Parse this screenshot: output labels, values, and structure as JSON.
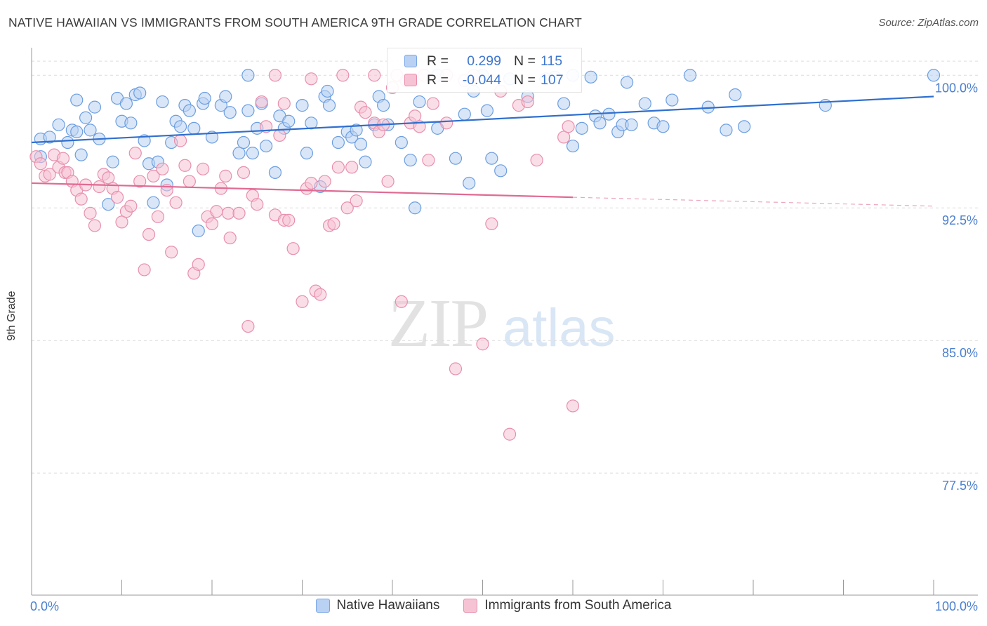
{
  "title": "NATIVE HAWAIIAN VS IMMIGRANTS FROM SOUTH AMERICA 9TH GRADE CORRELATION CHART",
  "source": "Source: ZipAtlas.com",
  "watermark": {
    "zip": "ZIP",
    "atlas": "atlas"
  },
  "stats": {
    "r_label": "R =",
    "n_label": "N =",
    "rows": [
      {
        "r": "0.299",
        "n": "115",
        "color": "#7aa7e6",
        "fill": "#b9d1f2"
      },
      {
        "r": "-0.044",
        "n": "107",
        "color": "#e88fac",
        "fill": "#f5c3d3"
      }
    ]
  },
  "chart_data": {
    "type": "scatter",
    "title": "NATIVE HAWAIIAN VS IMMIGRANTS FROM SOUTH AMERICA 9TH GRADE CORRELATION CHART",
    "xlabel": "",
    "ylabel": "9th Grade",
    "xlim": [
      0,
      100
    ],
    "ylim": [
      70.6,
      101.4
    ],
    "x_tick_labels": [
      "0.0%",
      "100.0%"
    ],
    "y_ticks": [
      100.0,
      92.5,
      85.0,
      77.5
    ],
    "y_tick_labels": [
      "100.0%",
      "92.5%",
      "85.0%",
      "77.5%"
    ],
    "grid": "horizontal dashed",
    "legend": "bottom",
    "series": [
      {
        "name": "Native Hawaiians",
        "color": "#6b9ee0",
        "fill": "#b9d1f2",
        "trend": {
          "x": [
            0,
            100
          ],
          "y": [
            96.2,
            98.8
          ]
        },
        "points": [
          [
            1,
            96.4
          ],
          [
            2,
            96.5
          ],
          [
            1,
            95.4
          ],
          [
            3,
            97.2
          ],
          [
            4,
            96.2
          ],
          [
            5,
            98.6
          ],
          [
            4.5,
            96.9
          ],
          [
            5,
            96.8
          ],
          [
            5.5,
            95.5
          ],
          [
            6,
            97.6
          ],
          [
            6.5,
            96.9
          ],
          [
            7,
            98.2
          ],
          [
            7.5,
            96.4
          ],
          [
            8.5,
            92.7
          ],
          [
            9,
            95.1
          ],
          [
            9.5,
            98.7
          ],
          [
            10,
            97.4
          ],
          [
            10.5,
            98.4
          ],
          [
            11,
            97.3
          ],
          [
            11.5,
            98.9
          ],
          [
            12,
            99
          ],
          [
            12.5,
            96.3
          ],
          [
            13,
            95
          ],
          [
            13.5,
            92.8
          ],
          [
            14,
            95.1
          ],
          [
            14.5,
            98.5
          ],
          [
            15,
            93.8
          ],
          [
            15.5,
            96.2
          ],
          [
            16,
            97.4
          ],
          [
            16.5,
            97.1
          ],
          [
            17,
            98.3
          ],
          [
            17.5,
            98
          ],
          [
            18,
            97
          ],
          [
            18.5,
            91.2
          ],
          [
            19,
            98.4
          ],
          [
            19.2,
            98.7
          ],
          [
            20,
            96.5
          ],
          [
            21,
            98.3
          ],
          [
            21.5,
            98.8
          ],
          [
            22,
            97.9
          ],
          [
            23,
            95.6
          ],
          [
            23.5,
            96.2
          ],
          [
            24,
            98
          ],
          [
            24.5,
            95.6
          ],
          [
            25,
            97
          ],
          [
            25.5,
            98.4
          ],
          [
            26,
            96
          ],
          [
            27,
            94.5
          ],
          [
            27.5,
            97.7
          ],
          [
            28,
            97
          ],
          [
            28.5,
            97.4
          ],
          [
            30,
            98.3
          ],
          [
            30.5,
            95.6
          ],
          [
            31,
            97.3
          ],
          [
            32,
            93.7
          ],
          [
            32.5,
            98.8
          ],
          [
            32.8,
            99.1
          ],
          [
            33,
            98.3
          ],
          [
            34,
            96.2
          ],
          [
            35,
            96.8
          ],
          [
            35.5,
            96.5
          ],
          [
            36,
            96.9
          ],
          [
            36.5,
            96.1
          ],
          [
            37,
            95.1
          ],
          [
            38,
            97.2
          ],
          [
            38.5,
            98.8
          ],
          [
            39,
            98.3
          ],
          [
            39.5,
            97.2
          ],
          [
            41,
            96.2
          ],
          [
            42,
            95.2
          ],
          [
            42.5,
            92.5
          ],
          [
            43,
            98.5
          ],
          [
            45,
            97
          ],
          [
            47,
            95.3
          ],
          [
            48,
            97.8
          ],
          [
            48.5,
            93.9
          ],
          [
            49,
            99.1
          ],
          [
            50.5,
            98
          ],
          [
            51,
            95.3
          ],
          [
            52,
            94.6
          ],
          [
            53,
            99.8
          ],
          [
            55,
            98.8
          ],
          [
            57,
            99.8
          ],
          [
            59,
            98.4
          ],
          [
            60,
            96
          ],
          [
            61,
            97
          ],
          [
            62,
            99.9
          ],
          [
            62.5,
            97.7
          ],
          [
            63,
            97.3
          ],
          [
            64,
            97.8
          ],
          [
            65,
            96.8
          ],
          [
            65.5,
            97.2
          ],
          [
            66,
            99.6
          ],
          [
            66.5,
            97.2
          ],
          [
            68,
            98.4
          ],
          [
            69,
            97.3
          ],
          [
            70,
            97.1
          ],
          [
            71,
            98.6
          ],
          [
            75,
            98.2
          ],
          [
            77,
            96.9
          ],
          [
            78,
            98.9
          ],
          [
            79,
            97.1
          ],
          [
            88,
            98.3
          ],
          [
            100,
            100
          ],
          [
            73,
            100
          ],
          [
            60,
            100
          ],
          [
            58,
            99.9
          ],
          [
            24,
            100
          ],
          [
            45,
            100
          ],
          [
            50,
            100
          ]
        ]
      },
      {
        "name": "Immigrants from South America",
        "color": "#e88fac",
        "fill": "#f5c3d3",
        "trend": {
          "x": [
            0,
            60
          ],
          "y": [
            93.9,
            93.1
          ]
        },
        "trend_dashed": {
          "x": [
            60,
            100
          ],
          "y": [
            93.1,
            92.6
          ]
        },
        "points": [
          [
            0.5,
            95.4
          ],
          [
            1,
            95
          ],
          [
            1.5,
            94.3
          ],
          [
            2,
            94.4
          ],
          [
            2.5,
            95.5
          ],
          [
            3,
            94.8
          ],
          [
            3.5,
            95.3
          ],
          [
            3.7,
            94.5
          ],
          [
            4,
            94.5
          ],
          [
            4.5,
            94
          ],
          [
            5,
            93.5
          ],
          [
            5.5,
            93
          ],
          [
            6,
            93.8
          ],
          [
            6.5,
            92.2
          ],
          [
            7,
            91.5
          ],
          [
            7.5,
            93.7
          ],
          [
            8,
            94.4
          ],
          [
            8.5,
            94.2
          ],
          [
            9,
            93.6
          ],
          [
            9.5,
            93.1
          ],
          [
            10,
            91.7
          ],
          [
            10.5,
            92.3
          ],
          [
            11,
            92.6
          ],
          [
            11.5,
            95.6
          ],
          [
            12,
            94
          ],
          [
            12.5,
            89
          ],
          [
            13,
            91
          ],
          [
            13.5,
            94.3
          ],
          [
            14,
            92
          ],
          [
            14.5,
            94.7
          ],
          [
            15,
            93.5
          ],
          [
            15.5,
            90
          ],
          [
            16,
            92.8
          ],
          [
            16.5,
            96.3
          ],
          [
            17,
            94.9
          ],
          [
            17.5,
            94
          ],
          [
            18,
            88.8
          ],
          [
            18.5,
            89.3
          ],
          [
            19,
            94.7
          ],
          [
            19.5,
            92
          ],
          [
            20,
            91.6
          ],
          [
            20.5,
            92.3
          ],
          [
            21,
            93.6
          ],
          [
            21.5,
            94.3
          ],
          [
            21.8,
            92.2
          ],
          [
            22,
            90.8
          ],
          [
            23,
            92.2
          ],
          [
            23.5,
            94.5
          ],
          [
            24,
            85.8
          ],
          [
            24.5,
            93.2
          ],
          [
            25,
            92.7
          ],
          [
            25.5,
            98.5
          ],
          [
            26,
            97.1
          ],
          [
            27,
            92.1
          ],
          [
            27.5,
            96.6
          ],
          [
            28,
            91.8
          ],
          [
            28.5,
            91.8
          ],
          [
            29,
            90.2
          ],
          [
            30,
            87.2
          ],
          [
            30.5,
            93.6
          ],
          [
            31,
            93.9
          ],
          [
            31.5,
            87.8
          ],
          [
            32,
            87.6
          ],
          [
            32.5,
            94
          ],
          [
            33,
            91.5
          ],
          [
            33.5,
            91.6
          ],
          [
            34,
            94.8
          ],
          [
            35,
            92.5
          ],
          [
            35.5,
            94.8
          ],
          [
            36,
            92.9
          ],
          [
            36.5,
            98.2
          ],
          [
            37,
            97.9
          ],
          [
            38,
            97.3
          ],
          [
            38.5,
            96.8
          ],
          [
            39,
            97.2
          ],
          [
            39.5,
            94
          ],
          [
            40,
            99.3
          ],
          [
            41,
            87.2
          ],
          [
            41.5,
            99.7
          ],
          [
            42,
            97.3
          ],
          [
            42.5,
            97.7
          ],
          [
            43,
            97.1
          ],
          [
            44,
            95.2
          ],
          [
            44.5,
            98.4
          ],
          [
            46,
            97.3
          ],
          [
            47,
            83.4
          ],
          [
            48,
            99.7
          ],
          [
            49,
            100
          ],
          [
            50,
            84.8
          ],
          [
            51,
            91.6
          ],
          [
            52,
            99.1
          ],
          [
            53,
            79.7
          ],
          [
            54,
            98.3
          ],
          [
            55,
            98.5
          ],
          [
            56,
            95.2
          ],
          [
            59,
            96.5
          ],
          [
            59.5,
            97.1
          ],
          [
            60,
            81.3
          ],
          [
            27,
            100
          ],
          [
            31,
            99.8
          ],
          [
            34.5,
            100
          ],
          [
            38,
            100
          ],
          [
            40.5,
            100
          ],
          [
            43.5,
            100
          ],
          [
            46,
            100
          ],
          [
            28,
            98.4
          ]
        ]
      }
    ]
  },
  "legend_items": [
    {
      "label": "Native Hawaiians",
      "color": "#7aa7e6",
      "fill": "#b9d1f2"
    },
    {
      "label": "Immigrants from South America",
      "color": "#e88fac",
      "fill": "#f5c3d3"
    }
  ]
}
